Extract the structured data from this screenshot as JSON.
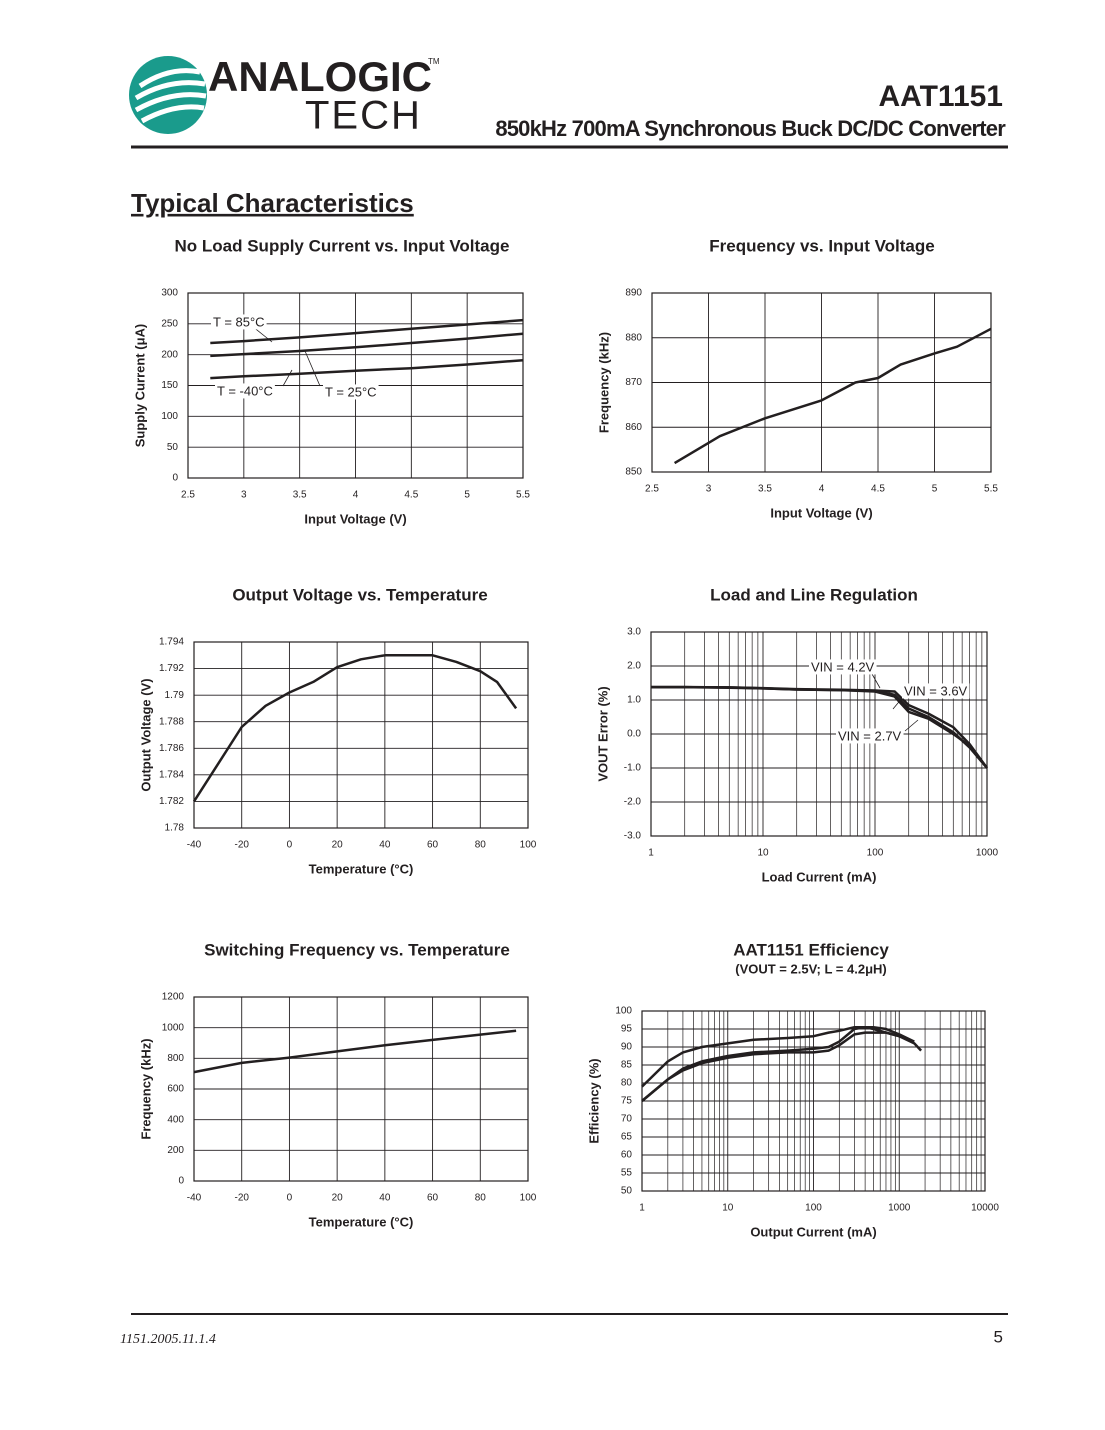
{
  "header": {
    "logo_top": "ANALOGIC",
    "logo_bottom": "TECH",
    "logo_tm": "TM",
    "part": "AAT1151",
    "subtitle": "850kHz 700mA Synchronous Buck DC/DC Converter"
  },
  "section_title": "Typical Characteristics",
  "chart_data": [
    {
      "type": "line",
      "title": "No Load Supply Current vs. Input Voltage",
      "x_label": "Input Voltage (V)",
      "y_label": "Supply Current (μA)",
      "xlim": [
        2.5,
        5.5
      ],
      "xticks": [
        2.5,
        3,
        3.5,
        4,
        4.5,
        5,
        5.5
      ],
      "ylim": [
        0,
        300
      ],
      "yticks": [
        0,
        50,
        100,
        150,
        200,
        250,
        300
      ],
      "grid": true,
      "x": [
        2.7,
        3,
        3.5,
        4,
        4.5,
        5,
        5.5
      ],
      "series": [
        {
          "name": "T = 85°C",
          "color": "#231f20",
          "values": [
            219,
            222,
            228,
            235,
            242,
            249,
            256
          ]
        },
        {
          "name": "T = 25°C",
          "color": "#231f20",
          "values": [
            198,
            201,
            206,
            212,
            219,
            226,
            234
          ]
        },
        {
          "name": "T = -40°C",
          "color": "#231f20",
          "values": [
            162,
            165,
            169,
            174,
            178,
            184,
            191
          ]
        }
      ]
    },
    {
      "type": "line",
      "title": "Frequency vs. Input Voltage",
      "x_label": "Input Voltage (V)",
      "y_label": "Frequency (kHz)",
      "xlim": [
        2.5,
        5.5
      ],
      "xticks": [
        2.5,
        3,
        3.5,
        4,
        4.5,
        5,
        5.5
      ],
      "ylim": [
        850,
        890
      ],
      "yticks": [
        850,
        860,
        870,
        880,
        890
      ],
      "grid": true,
      "x": [
        2.7,
        3,
        3.1,
        3.5,
        4,
        4.3,
        4.5,
        4.7,
        5,
        5.2,
        5.5
      ],
      "series": [
        {
          "color": "#231f20",
          "values": [
            852,
            856.5,
            858,
            862,
            866,
            870,
            871,
            874,
            876.5,
            878,
            882
          ]
        }
      ]
    },
    {
      "type": "line",
      "title": "Output Voltage vs. Temperature",
      "x_label": "Temperature (°C)",
      "y_label": "Output Voltage (V)",
      "xlim": [
        -40,
        100
      ],
      "xticks": [
        -40,
        -20,
        0,
        20,
        40,
        60,
        80,
        100
      ],
      "ylim": [
        1.78,
        1.794
      ],
      "yticks": [
        1.78,
        1.782,
        1.784,
        1.786,
        1.788,
        1.79,
        1.792,
        1.794
      ],
      "grid": true,
      "x": [
        -40,
        -30,
        -20,
        -10,
        0,
        10,
        20,
        30,
        40,
        50,
        60,
        70,
        80,
        87,
        95
      ],
      "series": [
        {
          "color": "#231f20",
          "values": [
            1.782,
            1.7848,
            1.7876,
            1.7892,
            1.7902,
            1.791,
            1.7921,
            1.7927,
            1.793,
            1.793,
            1.793,
            1.7925,
            1.7918,
            1.791,
            1.789
          ]
        }
      ]
    },
    {
      "type": "line",
      "title": "Load and Line Regulation",
      "x_label": "Load Current (mA)",
      "y_label": "VOUT Error (%)",
      "x_scale": "log",
      "xlim": [
        1,
        1000
      ],
      "xticks": [
        1,
        10,
        100,
        1000
      ],
      "ylim": [
        -3,
        3
      ],
      "yticks": [
        {
          "value": -3,
          "label": "-3.0"
        },
        {
          "value": -2,
          "label": "-2.0"
        },
        {
          "value": -1,
          "label": "-1.0"
        },
        {
          "value": 0,
          "label": "0.0"
        },
        {
          "value": 1,
          "label": "1.0"
        },
        {
          "value": 2,
          "label": "2.0"
        },
        {
          "value": 3,
          "label": "3.0"
        }
      ],
      "grid": true,
      "x": [
        1,
        2,
        5,
        10,
        20,
        50,
        100,
        150,
        200,
        300,
        500,
        700,
        1000
      ],
      "series": [
        {
          "name": "VIN = 4.2V",
          "color": "#231f20",
          "values": [
            1.38,
            1.38,
            1.37,
            1.35,
            1.32,
            1.3,
            1.28,
            1.25,
            0.85,
            0.6,
            0.2,
            -0.3,
            -1.0
          ]
        },
        {
          "name": "VIN = 3.6V",
          "color": "#231f20",
          "values": [
            1.38,
            1.38,
            1.36,
            1.34,
            1.31,
            1.29,
            1.27,
            1.15,
            0.75,
            0.5,
            0.05,
            -0.4,
            -1.0
          ]
        },
        {
          "name": "VIN = 2.7V",
          "color": "#231f20",
          "values": [
            1.38,
            1.38,
            1.37,
            1.34,
            1.31,
            1.29,
            1.25,
            1.1,
            0.65,
            0.45,
            0.0,
            -0.35,
            -1.0
          ]
        }
      ]
    },
    {
      "type": "line",
      "title": "Switching Frequency vs. Temperature",
      "x_label": "Temperature (°C)",
      "y_label": "Frequency (kHz)",
      "xlim": [
        -40,
        100
      ],
      "xticks": [
        -40,
        -20,
        0,
        20,
        40,
        60,
        80,
        100
      ],
      "ylim": [
        0,
        1200
      ],
      "yticks": [
        0,
        200,
        400,
        600,
        800,
        1000,
        1200
      ],
      "grid": true,
      "x": [
        -40,
        -20,
        0,
        20,
        40,
        60,
        80,
        95
      ],
      "series": [
        {
          "color": "#231f20",
          "values": [
            710,
            770,
            805,
            845,
            885,
            920,
            955,
            980
          ]
        }
      ]
    },
    {
      "type": "line",
      "title": "AAT1151 Efficiency",
      "subtitle": "(VOUT = 2.5V; L = 4.2μH)",
      "x_label": "Output Current (mA)",
      "y_label": "Efficiency (%)",
      "x_scale": "log",
      "xlim": [
        1,
        10000
      ],
      "xticks": [
        1,
        10,
        100,
        1000,
        10000
      ],
      "ylim": [
        50,
        100
      ],
      "yticks": [
        50,
        55,
        60,
        65,
        70,
        75,
        80,
        85,
        90,
        95,
        100
      ],
      "grid": true,
      "x": [
        1,
        2,
        3,
        5,
        10,
        20,
        50,
        100,
        150,
        200,
        300,
        400,
        500,
        700,
        1000,
        1500,
        1800
      ],
      "series": [
        {
          "color": "#231f20",
          "values": [
            79,
            86,
            88.5,
            90,
            91,
            92,
            92.5,
            93,
            94,
            94.5,
            95.5,
            95.5,
            95,
            94,
            93,
            91,
            89
          ]
        },
        {
          "color": "#231f20",
          "values": [
            75,
            81,
            84,
            86,
            87.5,
            88.5,
            89,
            89.5,
            90,
            91.5,
            95,
            95.5,
            95.5,
            95,
            93.5,
            91.5,
            null
          ]
        },
        {
          "color": "#231f20",
          "values": [
            75,
            81,
            83.5,
            85.5,
            87,
            88,
            88.5,
            88.5,
            89,
            90.5,
            93.5,
            94,
            94,
            94,
            93,
            null,
            null
          ]
        }
      ]
    }
  ],
  "footer": {
    "doc_id": "1151.2005.11.1.4",
    "page": "5"
  }
}
